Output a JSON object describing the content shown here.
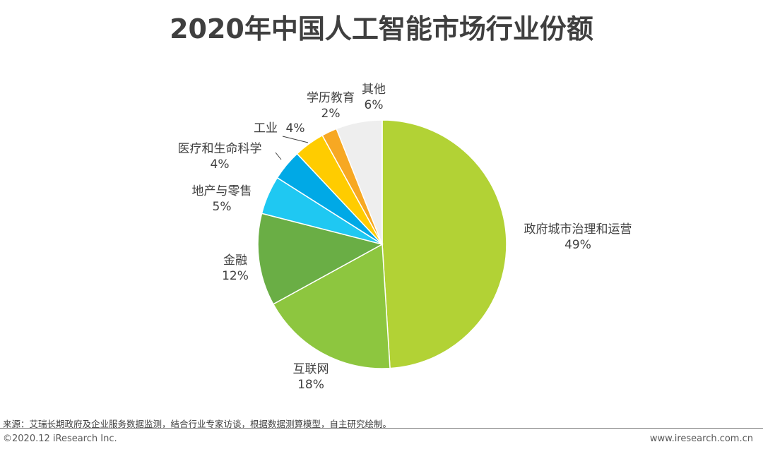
{
  "chart_data": {
    "type": "pie",
    "title": "2020年中国人工智能市场行业份额",
    "slices": [
      {
        "name": "政府城市治理和运营",
        "value": 49,
        "label": "49%",
        "color": "#b2d235"
      },
      {
        "name": "互联网",
        "value": 18,
        "label": "18%",
        "color": "#8dc63f"
      },
      {
        "name": "金融",
        "value": 12,
        "label": "12%",
        "color": "#6aae45"
      },
      {
        "name": "地产与零售",
        "value": 5,
        "label": "5%",
        "color": "#1fc8f2"
      },
      {
        "name": "医疗和生命科学",
        "value": 4,
        "label": "4%",
        "color": "#00a9e6"
      },
      {
        "name": "工业",
        "value": 4,
        "label": "4%",
        "color": "#ffcc00"
      },
      {
        "name": "学历教育",
        "value": 2,
        "label": "2%",
        "color": "#f7a823"
      },
      {
        "name": "其他",
        "value": 6,
        "label": "6%",
        "color": "#eeeeee"
      }
    ]
  },
  "footer": {
    "source": "来源：艾瑞长期政府及企业服务数据监测，结合行业专家访谈，根据数据测算模型，自主研究绘制。",
    "copyright": "©2020.12 iResearch Inc.",
    "website": "www.iresearch.com.cn"
  }
}
